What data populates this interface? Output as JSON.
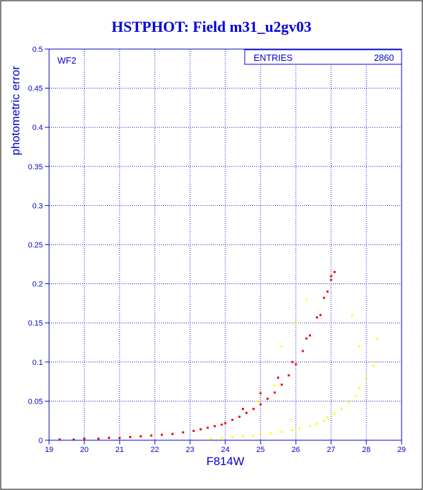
{
  "chart_data": {
    "type": "scatter",
    "title": "HSTPHOT: Field m31_u2gv03",
    "xlabel": "F814W",
    "ylabel": "photometric error",
    "panel_label": "WF2",
    "stats_box": {
      "label": "ENTRIES",
      "value": "2860"
    },
    "xlim": [
      19,
      29
    ],
    "ylim": [
      0,
      0.5
    ],
    "x_ticks": [
      "19",
      "20",
      "21",
      "22",
      "23",
      "24",
      "25",
      "26",
      "27",
      "28",
      "29"
    ],
    "y_ticks": [
      "0",
      "0.05",
      "0.1",
      "0.15",
      "0.2",
      "0.25",
      "0.3",
      "0.35",
      "0.4",
      "0.45",
      "0.5"
    ],
    "grid": true,
    "colors": {
      "frame": "#0000cc",
      "grid": "#0000cc",
      "title": "#0000dd",
      "red_series": "#ee0000",
      "yellow_series": "#ffff00"
    },
    "series": [
      {
        "color": "red",
        "x": [
          19.3,
          19.7,
          20.0,
          20.4,
          20.7,
          21.0,
          21.3,
          21.6,
          21.9,
          22.2,
          22.5,
          22.8,
          23.1,
          23.3,
          23.5,
          23.7,
          23.9,
          24.0,
          24.2,
          24.4,
          24.6,
          24.8,
          25.0,
          25.2,
          25.4,
          25.6,
          25.8,
          26.0,
          26.2,
          26.4,
          26.6,
          26.8,
          27.0,
          27.1,
          24.5,
          25.0,
          25.5,
          25.9,
          26.3,
          26.7,
          26.9,
          27.0
        ],
        "y": [
          0.001,
          0.001,
          0.002,
          0.002,
          0.003,
          0.003,
          0.004,
          0.005,
          0.006,
          0.007,
          0.008,
          0.01,
          0.012,
          0.014,
          0.016,
          0.018,
          0.02,
          0.022,
          0.026,
          0.03,
          0.035,
          0.04,
          0.046,
          0.053,
          0.061,
          0.071,
          0.083,
          0.097,
          0.114,
          0.134,
          0.157,
          0.182,
          0.205,
          0.215,
          0.04,
          0.06,
          0.08,
          0.1,
          0.13,
          0.16,
          0.19,
          0.21
        ]
      },
      {
        "color": "yellow",
        "x": [
          23.6,
          23.9,
          24.2,
          24.5,
          24.8,
          25.0,
          25.3,
          25.6,
          25.9,
          26.1,
          26.4,
          26.6,
          26.8,
          26.9,
          27.1,
          27.3,
          27.5,
          27.7,
          27.8,
          28.0,
          28.2,
          24.9,
          25.4,
          25.6,
          26.0,
          26.3,
          27.6,
          27.8,
          28.3
        ],
        "y": [
          0.002,
          0.003,
          0.004,
          0.005,
          0.006,
          0.008,
          0.009,
          0.011,
          0.013,
          0.015,
          0.018,
          0.021,
          0.025,
          0.029,
          0.034,
          0.04,
          0.048,
          0.057,
          0.067,
          0.08,
          0.095,
          0.05,
          0.07,
          0.12,
          0.15,
          0.18,
          0.16,
          0.12,
          0.13
        ]
      }
    ]
  }
}
